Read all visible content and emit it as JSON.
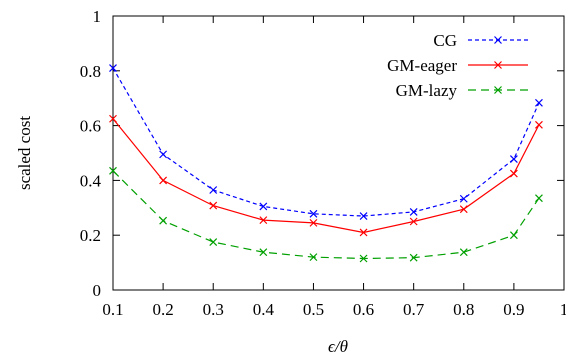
{
  "chart_data": {
    "type": "line",
    "xlabel": "ϵ/θ",
    "ylabel": "scaled cost",
    "xlim": [
      0.1,
      1.0
    ],
    "ylim": [
      0,
      1
    ],
    "xticks": [
      "0.1",
      "0.2",
      "0.3",
      "0.4",
      "0.5",
      "0.6",
      "0.7",
      "0.8",
      "0.9",
      "1"
    ],
    "yticks": [
      "0",
      "0.2",
      "0.4",
      "0.6",
      "0.8",
      "1"
    ],
    "grid": false,
    "legend_position": "top-right",
    "x": [
      0.1,
      0.2,
      0.3,
      0.4,
      0.5,
      0.6,
      0.7,
      0.8,
      0.9,
      0.95
    ],
    "series": [
      {
        "name": "CG",
        "color": "#0000ff",
        "line_style": "dashed",
        "marker": "x",
        "values": [
          0.81,
          0.495,
          0.365,
          0.305,
          0.278,
          0.27,
          0.285,
          0.333,
          0.478,
          0.683
        ]
      },
      {
        "name": "GM-eager",
        "color": "#ff0000",
        "line_style": "solid",
        "marker": "x",
        "values": [
          0.625,
          0.4,
          0.308,
          0.255,
          0.245,
          0.21,
          0.25,
          0.295,
          0.425,
          0.603
        ]
      },
      {
        "name": "GM-lazy",
        "color": "#00a000",
        "line_style": "dashed",
        "marker": "x",
        "values": [
          0.435,
          0.253,
          0.175,
          0.138,
          0.12,
          0.115,
          0.118,
          0.138,
          0.2,
          0.335
        ]
      }
    ]
  }
}
